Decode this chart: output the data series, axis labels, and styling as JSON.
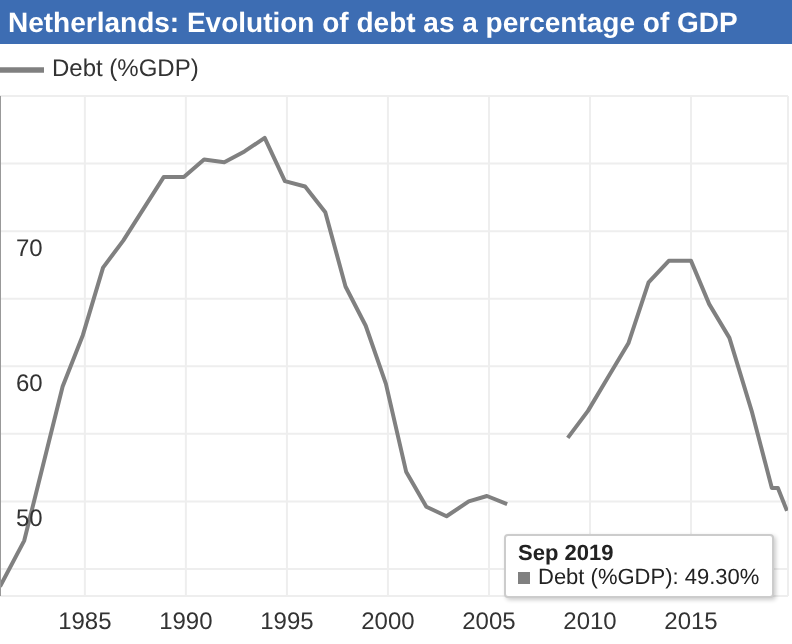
{
  "chart_data": {
    "type": "line",
    "title": "Netherlands: Evolution of debt as a percentage of GDP",
    "x": [
      1980.8,
      1982.0,
      1983.9,
      1984.9,
      1985.9,
      1986.9,
      1988.9,
      1989.9,
      1990.9,
      1991.9,
      1992.9,
      1993.9,
      1994.9,
      1995.9,
      1996.9,
      1997.9,
      1998.9,
      1999.9,
      2000.9,
      2001.9,
      2002.9,
      2004.0,
      2004.9,
      2005.9,
      2006.9,
      2007.9,
      2008.9,
      2009.9,
      2010.9,
      2011.9,
      2012.9,
      2013.9,
      2015.0,
      2015.9,
      2016.9,
      2018.0,
      2019.0,
      2019.3,
      2019.75
    ],
    "series": [
      {
        "name": "Debt (%GDP)",
        "color": "#808080",
        "values": [
          43.7,
          47.1,
          58.5,
          62.3,
          67.3,
          69.3,
          74.0,
          74.0,
          75.3,
          75.1,
          75.9,
          76.9,
          73.7,
          73.3,
          71.4,
          65.9,
          63.0,
          58.7,
          52.2,
          49.6,
          48.9,
          50.0,
          50.4,
          49.8,
          null,
          null,
          54.7,
          56.7,
          59.2,
          61.7,
          66.2,
          67.8,
          67.8,
          64.6,
          62.1,
          56.7,
          51.0,
          51.0,
          49.3
        ]
      }
    ],
    "xlim": [
      1980.8,
      2019.8
    ],
    "xticks": [
      1985,
      1990,
      1995,
      2000,
      2005,
      2010,
      2015
    ],
    "ylim": [
      43,
      80
    ],
    "yticks": [
      {
        "value": 45,
        "label": null
      },
      50,
      {
        "value": 55,
        "label": null
      },
      60,
      {
        "value": 65,
        "label": null
      },
      70,
      {
        "value": 75,
        "label": null
      }
    ],
    "grid": true,
    "legend": "top left",
    "marker": "none",
    "line_style": "solid",
    "annotations": [
      "Sep 2019",
      "Debt (%GDP): 49.30%"
    ]
  }
}
